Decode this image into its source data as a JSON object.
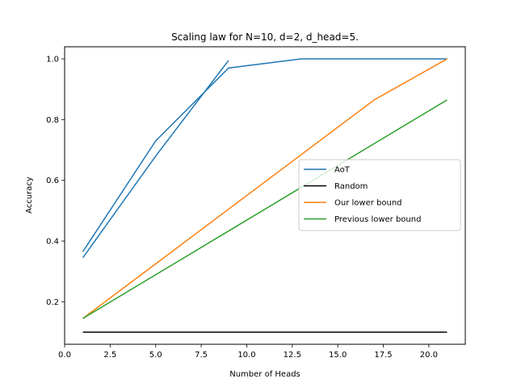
{
  "chart_data": {
    "type": "line",
    "title": "Scaling law for N=10, d=2, d_head=5.",
    "xlabel": "Number of Heads",
    "ylabel": "Accuracy",
    "xlim": [
      0,
      22
    ],
    "ylim": [
      0.06,
      1.04
    ],
    "xticks": [
      0.0,
      2.5,
      5.0,
      7.5,
      10.0,
      12.5,
      15.0,
      17.5,
      20.0
    ],
    "xtick_labels": [
      "0.0",
      "2.5",
      "5.0",
      "7.5",
      "10.0",
      "12.5",
      "15.0",
      "17.5",
      "20.0"
    ],
    "yticks": [
      0.2,
      0.4,
      0.6,
      0.8,
      1.0
    ],
    "ytick_labels": [
      "0.2",
      "0.4",
      "0.6",
      "0.8",
      "1.0"
    ],
    "grid": false,
    "legend_position": "center-right",
    "series": [
      {
        "name": "AoT",
        "color": "#1f77b4",
        "x": [
          1,
          5,
          9,
          13,
          17,
          21
        ],
        "y": [
          0.365,
          0.73,
          0.97,
          1.0,
          1.0,
          1.0
        ]
      },
      {
        "name": "",
        "color": "#1f77b4",
        "x": [
          1,
          5,
          9
        ],
        "y": [
          0.345,
          0.68,
          0.995
        ]
      },
      {
        "name": "Random",
        "color": "#000000",
        "x": [
          1,
          21
        ],
        "y": [
          0.1,
          0.1
        ]
      },
      {
        "name": "Our lower bound",
        "color": "#ff7f0e",
        "x": [
          1,
          5,
          9,
          13,
          17,
          21
        ],
        "y": [
          0.145,
          0.325,
          0.505,
          0.685,
          0.865,
          1.0
        ]
      },
      {
        "name": "Previous lower bound",
        "color": "#2ca02c",
        "x": [
          1,
          5,
          9,
          13,
          17,
          21
        ],
        "y": [
          0.145,
          0.289,
          0.433,
          0.577,
          0.721,
          0.865
        ]
      }
    ]
  }
}
